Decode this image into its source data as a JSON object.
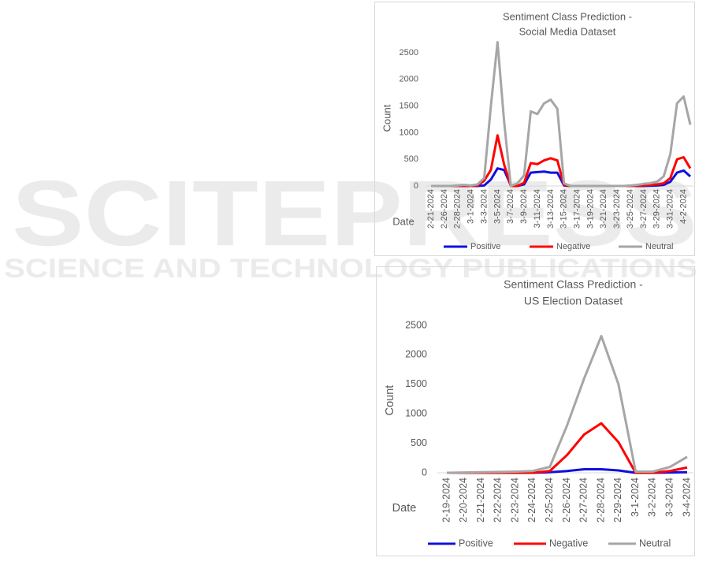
{
  "watermark": {
    "title": "SCITEPRESS",
    "subtitle": "SCIENCE AND TECHNOLOGY PUBLICATIONS"
  },
  "chart_data": [
    {
      "type": "line",
      "title": "Sentiment Class Prediction -",
      "subtitle": "Social Media Dataset",
      "x_label": "Date",
      "y_label": "Count",
      "categories": [
        "2-21-2024",
        null,
        "2-26-2024",
        null,
        "2-28-2024",
        null,
        "3-1-2024",
        null,
        "3-3-2024",
        null,
        "3-5-2024",
        null,
        "3-7-2024",
        null,
        "3-9-2024",
        null,
        "3-11-2024",
        null,
        "3-13-2024",
        null,
        "3-15-2024",
        null,
        "3-17-2024",
        null,
        "3-19-2024",
        null,
        "3-21-2024",
        null,
        "3-23-2024",
        null,
        "3-25-2024",
        null,
        "3-27-2024",
        null,
        "3-29-2024",
        null,
        "3-31-2024",
        null,
        "4-2-2024",
        null
      ],
      "series": [
        {
          "name": "Positive",
          "color": "#1010e0",
          "values": [
            0,
            0,
            0,
            0,
            0,
            0,
            0,
            0,
            10,
            120,
            330,
            300,
            10,
            0,
            30,
            250,
            260,
            270,
            250,
            250,
            10,
            0,
            0,
            0,
            0,
            0,
            0,
            0,
            0,
            0,
            0,
            0,
            0,
            5,
            10,
            20,
            80,
            250,
            290,
            180
          ]
        },
        {
          "name": "Negative",
          "color": "#ff0000",
          "values": [
            0,
            0,
            0,
            0,
            0,
            5,
            0,
            10,
            100,
            300,
            950,
            400,
            0,
            0,
            60,
            430,
            410,
            480,
            520,
            480,
            20,
            0,
            0,
            0,
            0,
            0,
            0,
            0,
            0,
            0,
            0,
            5,
            10,
            20,
            30,
            50,
            150,
            500,
            540,
            330
          ]
        },
        {
          "name": "Neutral",
          "color": "#a6a6a6",
          "values": [
            0,
            0,
            0,
            0,
            10,
            20,
            10,
            30,
            150,
            1500,
            2700,
            1200,
            0,
            50,
            200,
            1400,
            1350,
            1550,
            1620,
            1450,
            50,
            0,
            0,
            0,
            0,
            0,
            0,
            0,
            0,
            0,
            10,
            20,
            40,
            50,
            80,
            180,
            600,
            1550,
            1680,
            1150
          ]
        }
      ],
      "ylim": [
        0,
        2800
      ],
      "yticks": [
        0,
        500,
        1000,
        1500,
        2000,
        2500
      ],
      "grid": false,
      "legend": "bottom"
    },
    {
      "type": "line",
      "title": "Sentiment Class Prediction -",
      "subtitle": "US Election Dataset",
      "x_label": "Date",
      "y_label": "Count",
      "categories": [
        "2-19-2024",
        "2-20-2024",
        "2-21-2024",
        "2-22-2024",
        "2-23-2024",
        "2-24-2024",
        "2-25-2024",
        "2-26-2024",
        "2-27-2024",
        "2-28-2024",
        "2-29-2024",
        "3-1-2024",
        "3-2-2024",
        "3-3-2024",
        "3-4-2024"
      ],
      "series": [
        {
          "name": "Positive",
          "color": "#1010e0",
          "values": [
            0,
            0,
            0,
            0,
            0,
            0,
            10,
            30,
            60,
            60,
            40,
            0,
            0,
            5,
            10
          ]
        },
        {
          "name": "Negative",
          "color": "#ff0000",
          "values": [
            0,
            0,
            0,
            0,
            0,
            0,
            30,
            300,
            650,
            840,
            520,
            0,
            0,
            30,
            90
          ]
        },
        {
          "name": "Neutral",
          "color": "#a6a6a6",
          "values": [
            0,
            5,
            10,
            15,
            20,
            30,
            100,
            800,
            1600,
            2320,
            1500,
            20,
            20,
            100,
            270
          ]
        }
      ],
      "ylim": [
        0,
        2500
      ],
      "yticks": [
        0,
        500,
        1000,
        1500,
        2000,
        2500
      ],
      "grid": false,
      "legend": "bottom"
    }
  ]
}
